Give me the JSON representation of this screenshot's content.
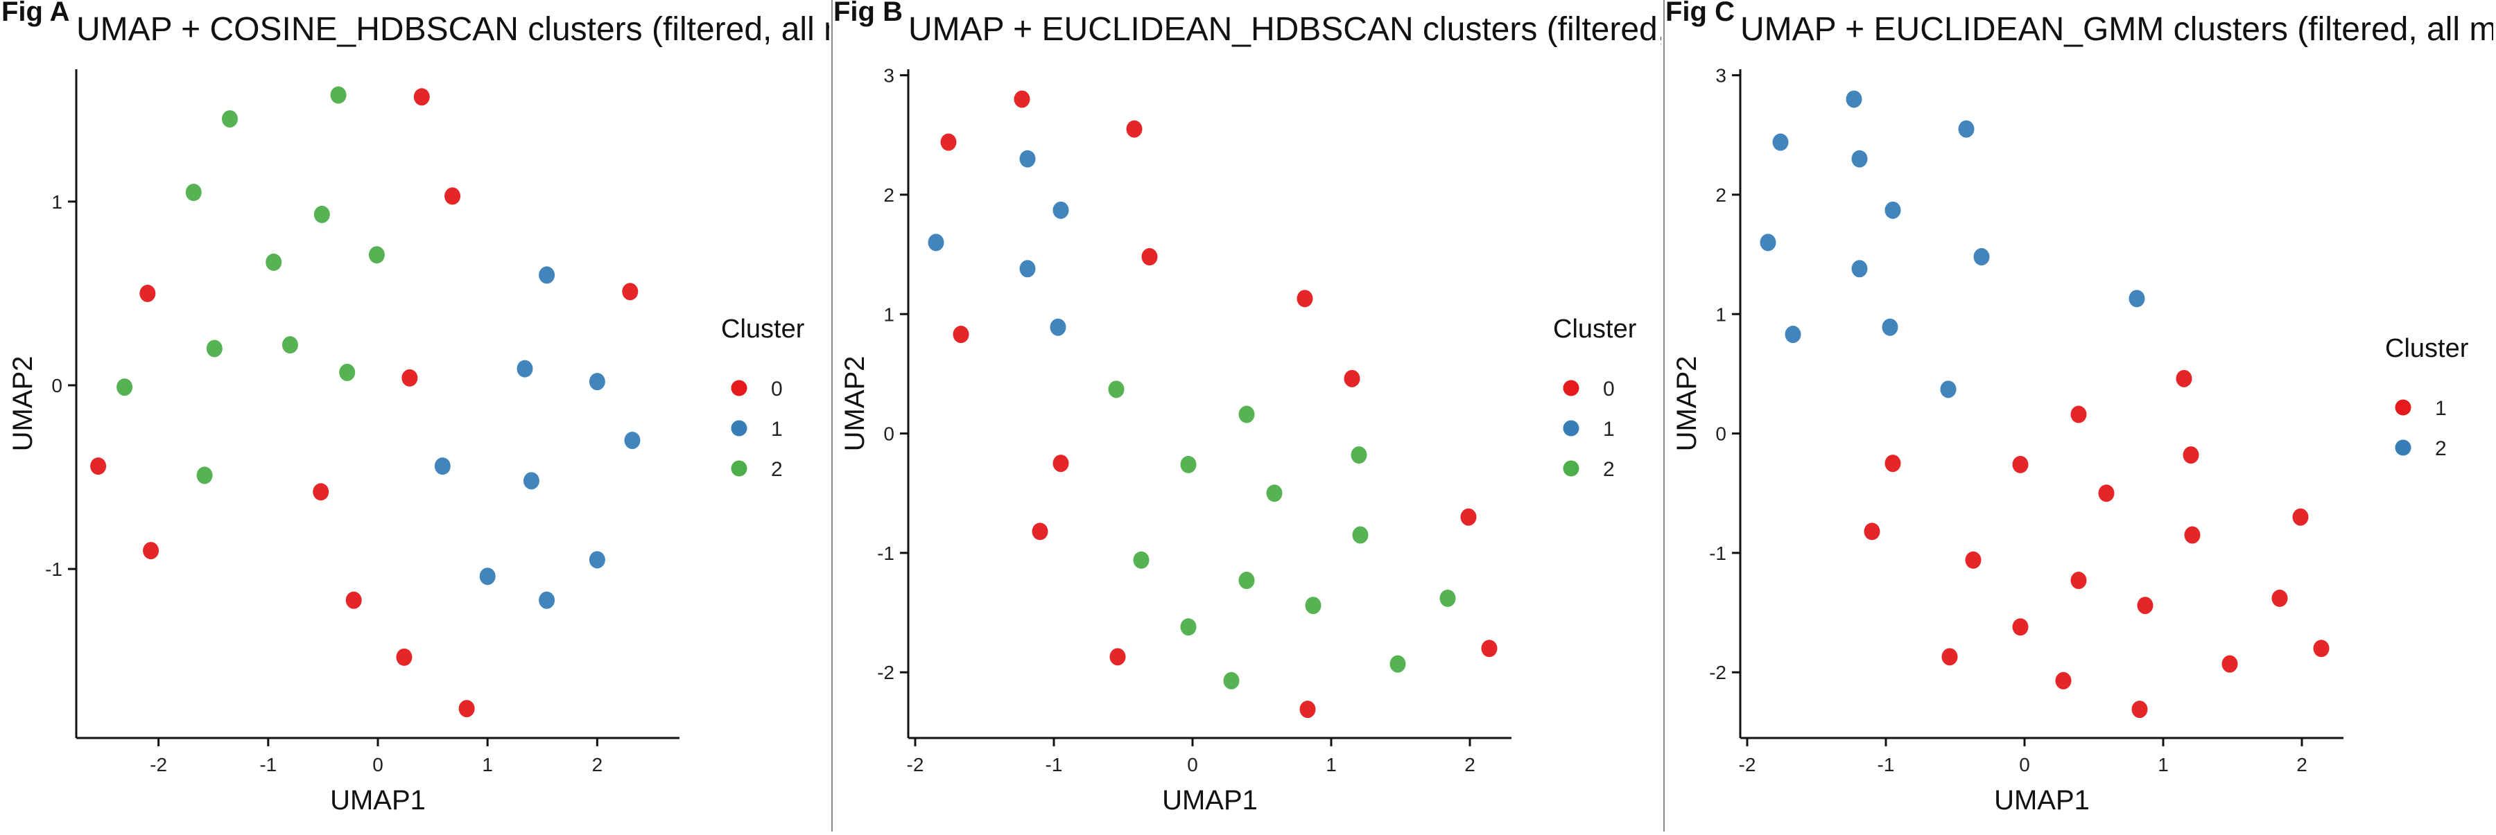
{
  "figure": {
    "background": "#ffffff",
    "divider_color": "#8a8a8a"
  },
  "chart_data": [
    {
      "type": "scatter",
      "fig_tag": "Fig A",
      "title": "UMAP + COSINE_HDBSCAN clusters (filtered, all m",
      "xlabel": "UMAP1",
      "ylabel": "UMAP2",
      "xlim": [
        -2.75,
        2.75
      ],
      "ylim": [
        -1.92,
        1.72
      ],
      "xticks": [
        -2,
        -1,
        0,
        1,
        2
      ],
      "yticks": [
        -1,
        0,
        1
      ],
      "grid": false,
      "legend": {
        "title": "Cluster",
        "position": "right",
        "entries": [
          {
            "label": "0",
            "color": "#E41A1C"
          },
          {
            "label": "1",
            "color": "#377EB8"
          },
          {
            "label": "2",
            "color": "#4DAF4A"
          }
        ]
      },
      "series": [
        {
          "name": "0",
          "color": "#E41A1C",
          "points": [
            [
              0.4,
              1.57
            ],
            [
              0.68,
              1.03
            ],
            [
              -2.1,
              0.5
            ],
            [
              2.3,
              0.51
            ],
            [
              0.29,
              0.04
            ],
            [
              -2.55,
              -0.44
            ],
            [
              -0.52,
              -0.58
            ],
            [
              -2.07,
              -0.9
            ],
            [
              -0.22,
              -1.17
            ],
            [
              0.24,
              -1.48
            ],
            [
              0.81,
              -1.76
            ]
          ]
        },
        {
          "name": "1",
          "color": "#377EB8",
          "points": [
            [
              1.54,
              0.6
            ],
            [
              1.34,
              0.09
            ],
            [
              2.0,
              0.02
            ],
            [
              2.32,
              -0.3
            ],
            [
              0.59,
              -0.44
            ],
            [
              1.4,
              -0.52
            ],
            [
              2.0,
              -0.95
            ],
            [
              1.0,
              -1.04
            ],
            [
              1.54,
              -1.17
            ]
          ]
        },
        {
          "name": "2",
          "color": "#4DAF4A",
          "points": [
            [
              -1.35,
              1.45
            ],
            [
              -0.36,
              1.58
            ],
            [
              -1.68,
              1.05
            ],
            [
              -0.51,
              0.93
            ],
            [
              -0.95,
              0.67
            ],
            [
              -0.01,
              0.71
            ],
            [
              -1.49,
              0.2
            ],
            [
              -0.8,
              0.22
            ],
            [
              -0.28,
              0.07
            ],
            [
              -2.31,
              -0.01
            ],
            [
              -1.58,
              -0.49
            ]
          ]
        }
      ]
    },
    {
      "type": "scatter",
      "fig_tag": "Fig B",
      "title": "UMAP + EUCLIDEAN_HDBSCAN clusters (filtered, a",
      "xlabel": "UMAP1",
      "ylabel": "UMAP2",
      "xlim": [
        -2.05,
        2.3
      ],
      "ylim": [
        -2.55,
        3.05
      ],
      "xticks": [
        -2,
        -1,
        0,
        1,
        2
      ],
      "yticks": [
        -2,
        -1,
        0,
        1,
        2,
        3
      ],
      "grid": false,
      "legend": {
        "title": "Cluster",
        "position": "right",
        "entries": [
          {
            "label": "0",
            "color": "#E41A1C"
          },
          {
            "label": "1",
            "color": "#377EB8"
          },
          {
            "label": "2",
            "color": "#4DAF4A"
          }
        ]
      },
      "series": [
        {
          "name": "0",
          "color": "#E41A1C",
          "points": [
            [
              -1.23,
              2.8
            ],
            [
              -0.42,
              2.55
            ],
            [
              -1.76,
              2.44
            ],
            [
              -0.31,
              1.48
            ],
            [
              0.81,
              1.13
            ],
            [
              -1.67,
              0.83
            ],
            [
              1.15,
              0.46
            ],
            [
              -0.95,
              -0.25
            ],
            [
              -1.1,
              -0.82
            ],
            [
              1.99,
              -0.7
            ],
            [
              -0.54,
              -1.87
            ],
            [
              2.14,
              -1.8
            ],
            [
              0.83,
              -2.31
            ]
          ]
        },
        {
          "name": "1",
          "color": "#377EB8",
          "points": [
            [
              -1.19,
              2.3
            ],
            [
              -0.95,
              1.87
            ],
            [
              -1.85,
              1.6
            ],
            [
              -1.19,
              1.38
            ],
            [
              -0.97,
              0.89
            ]
          ]
        },
        {
          "name": "2",
          "color": "#4DAF4A",
          "points": [
            [
              -0.55,
              0.37
            ],
            [
              0.39,
              0.16
            ],
            [
              -0.03,
              -0.26
            ],
            [
              1.2,
              -0.18
            ],
            [
              0.59,
              -0.5
            ],
            [
              -0.37,
              -1.06
            ],
            [
              1.21,
              -0.85
            ],
            [
              0.39,
              -1.23
            ],
            [
              0.87,
              -1.44
            ],
            [
              1.84,
              -1.38
            ],
            [
              -0.03,
              -1.62
            ],
            [
              1.48,
              -1.93
            ],
            [
              0.28,
              -2.07
            ]
          ]
        }
      ]
    },
    {
      "type": "scatter",
      "fig_tag": "Fig C",
      "title": "UMAP + EUCLIDEAN_GMM clusters (filtered, all mu",
      "xlabel": "UMAP1",
      "ylabel": "UMAP2",
      "xlim": [
        -2.05,
        2.3
      ],
      "ylim": [
        -2.55,
        3.05
      ],
      "xticks": [
        -2,
        -1,
        0,
        1,
        2
      ],
      "yticks": [
        -2,
        -1,
        0,
        1,
        2,
        3
      ],
      "grid": false,
      "legend": {
        "title": "Cluster",
        "position": "right",
        "entries": [
          {
            "label": "1",
            "color": "#E41A1C"
          },
          {
            "label": "2",
            "color": "#377EB8"
          }
        ]
      },
      "series": [
        {
          "name": "1",
          "color": "#E41A1C",
          "points": [
            [
              1.15,
              0.46
            ],
            [
              0.39,
              0.16
            ],
            [
              -0.95,
              -0.25
            ],
            [
              -0.03,
              -0.26
            ],
            [
              1.2,
              -0.18
            ],
            [
              0.59,
              -0.5
            ],
            [
              -1.1,
              -0.82
            ],
            [
              1.99,
              -0.7
            ],
            [
              1.21,
              -0.85
            ],
            [
              -0.37,
              -1.06
            ],
            [
              0.39,
              -1.23
            ],
            [
              0.87,
              -1.44
            ],
            [
              1.84,
              -1.38
            ],
            [
              -0.03,
              -1.62
            ],
            [
              -0.54,
              -1.87
            ],
            [
              2.14,
              -1.8
            ],
            [
              1.48,
              -1.93
            ],
            [
              0.28,
              -2.07
            ],
            [
              0.83,
              -2.31
            ]
          ]
        },
        {
          "name": "2",
          "color": "#377EB8",
          "points": [
            [
              -1.23,
              2.8
            ],
            [
              -0.42,
              2.55
            ],
            [
              -1.76,
              2.44
            ],
            [
              -1.19,
              2.3
            ],
            [
              -0.95,
              1.87
            ],
            [
              -1.85,
              1.6
            ],
            [
              -0.31,
              1.48
            ],
            [
              -1.19,
              1.38
            ],
            [
              0.81,
              1.13
            ],
            [
              -0.97,
              0.89
            ],
            [
              -1.67,
              0.83
            ],
            [
              -0.55,
              0.37
            ]
          ]
        }
      ]
    }
  ]
}
